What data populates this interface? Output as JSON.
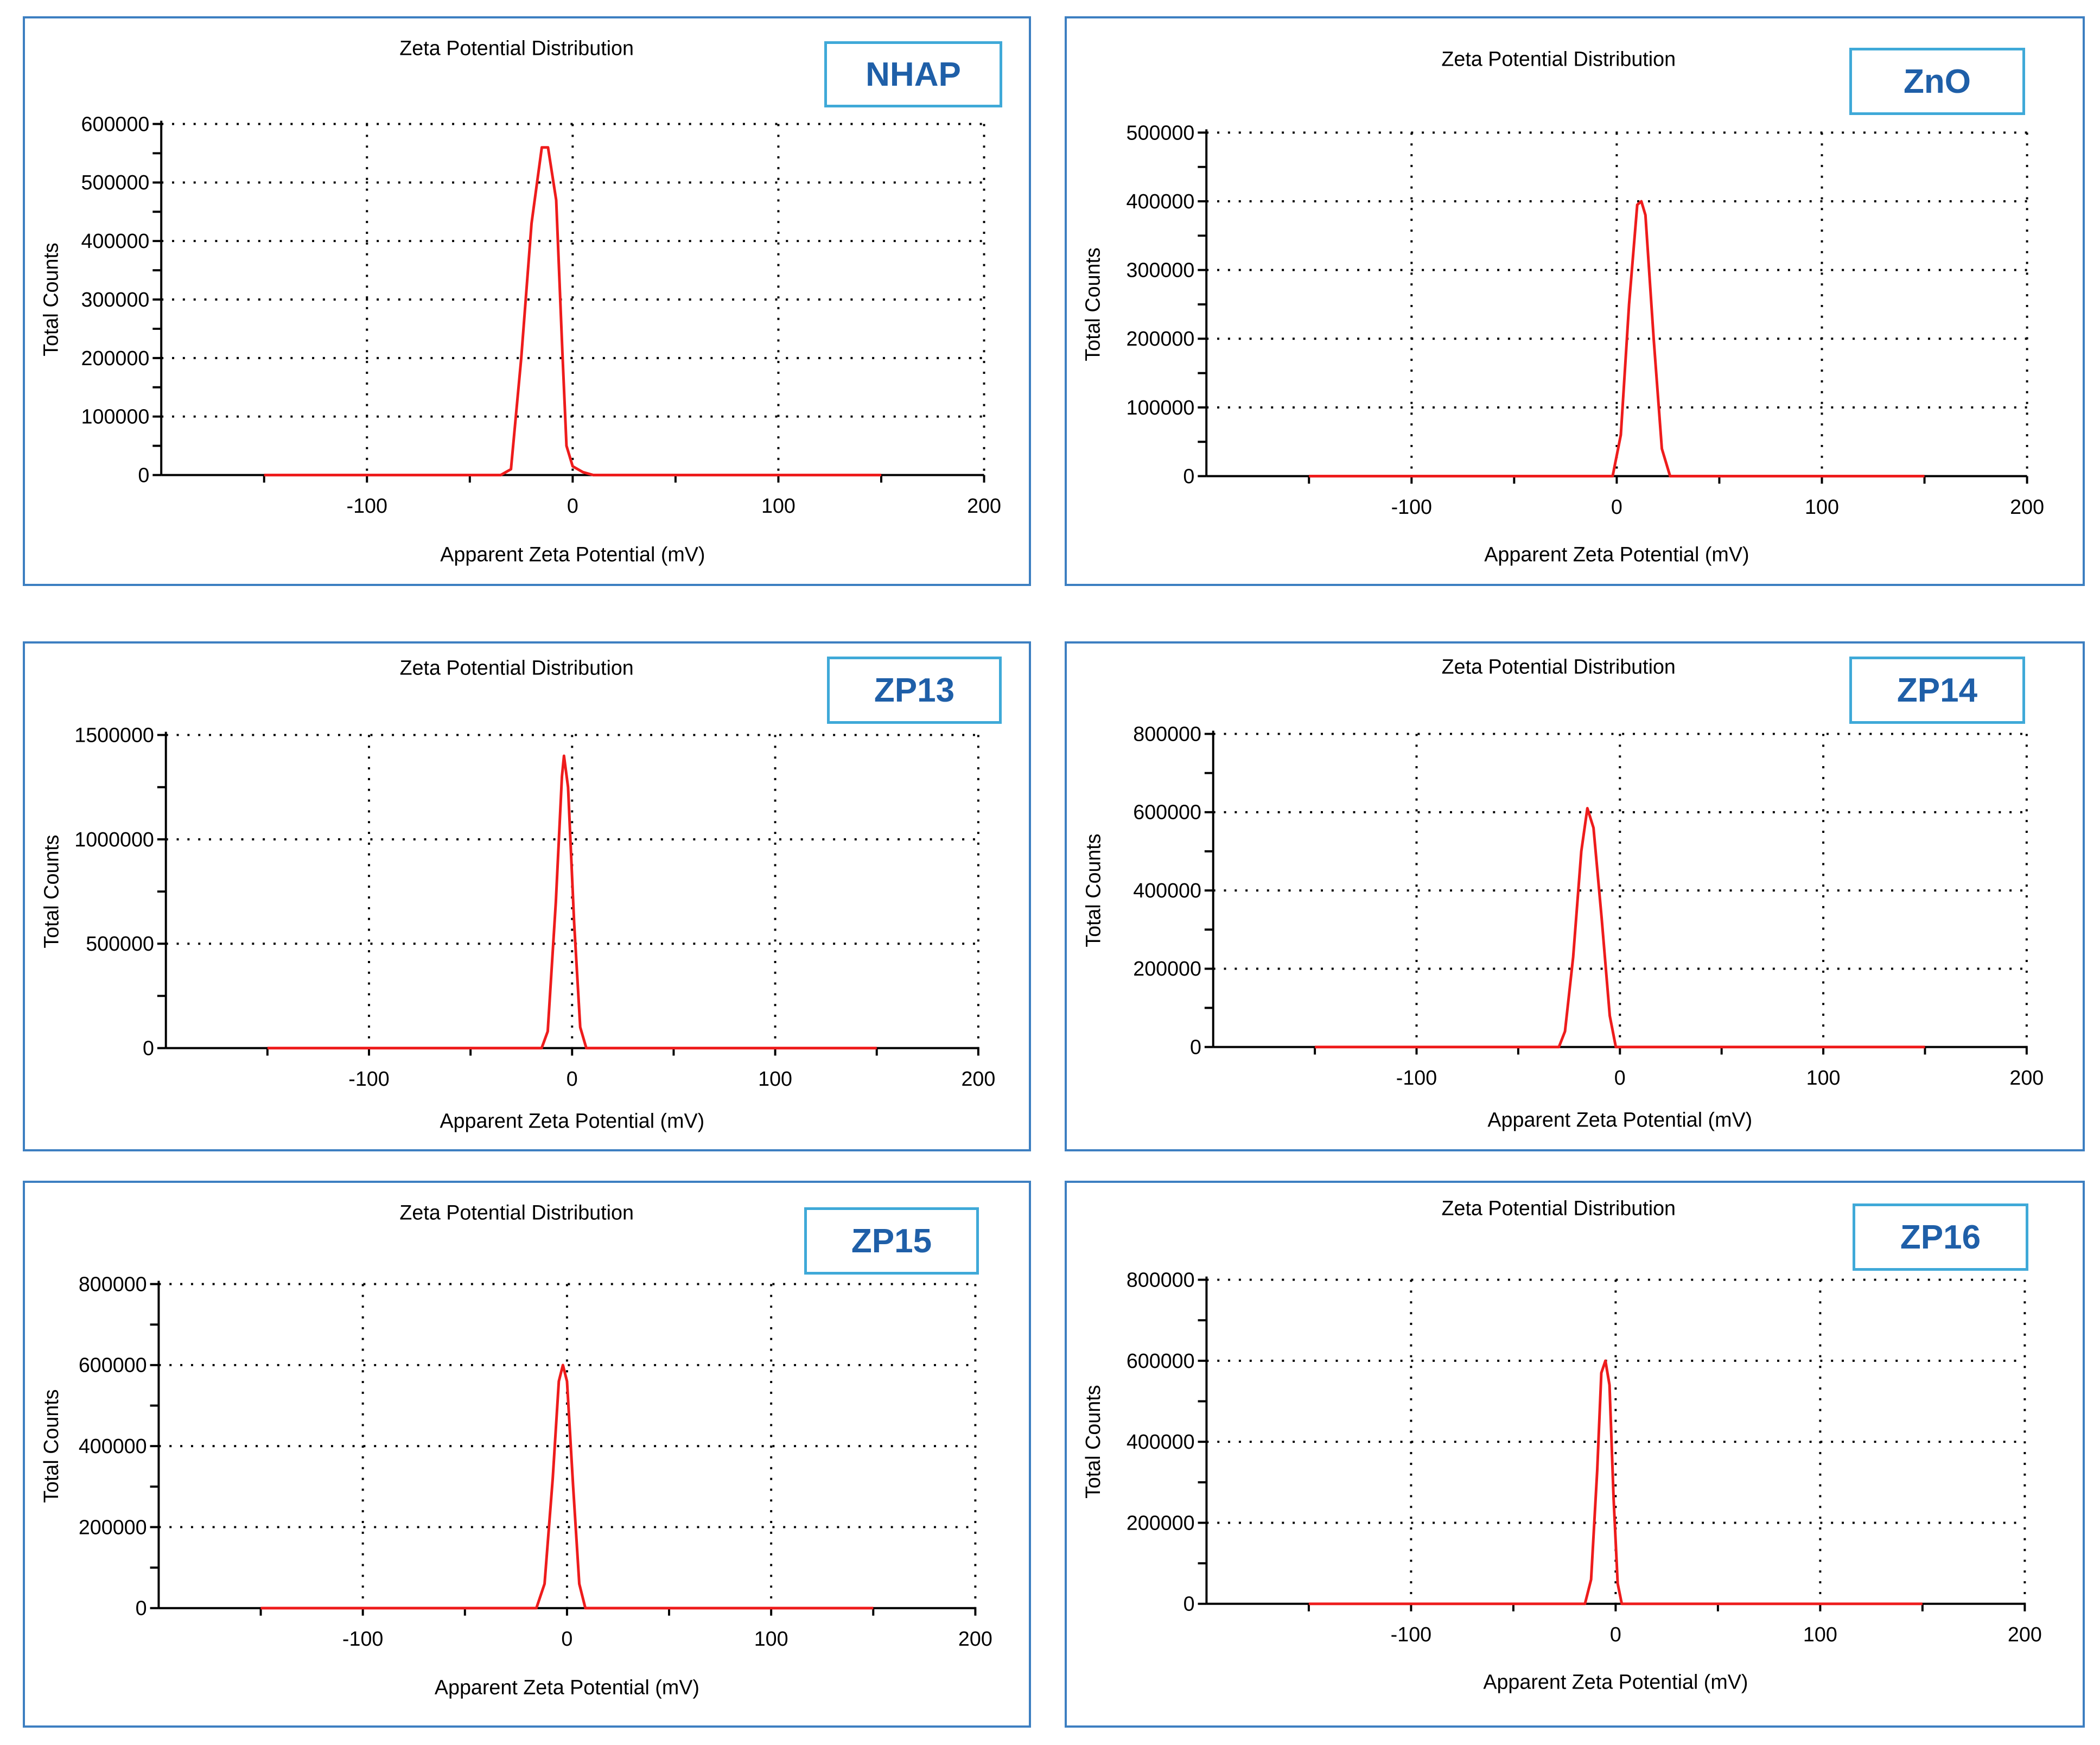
{
  "colors": {
    "curve": "#ee1c1c",
    "frame": "#3d7fc1",
    "tag_border": "#3fa9d8",
    "tag_text": "#1f5fa8"
  },
  "chart_data": [
    {
      "type": "line",
      "label": "NHAP",
      "title": "Zeta Potential Distribution",
      "xlabel": "Apparent Zeta Potential (mV)",
      "ylabel": "Total Counts",
      "xlim": [
        -200,
        200
      ],
      "ylim": [
        0,
        600000
      ],
      "xticks": [
        "-100",
        "0",
        "100",
        "200"
      ],
      "yticks": [
        "0",
        "100000",
        "200000",
        "300000",
        "400000",
        "500000",
        "600000"
      ],
      "series": [
        {
          "name": "NHAP",
          "x": [
            -150,
            -35,
            -30,
            -25,
            -20,
            -15,
            -12,
            -8,
            -5,
            -3,
            0,
            5,
            10,
            150
          ],
          "values": [
            0,
            0,
            10000,
            200000,
            430000,
            560000,
            560000,
            470000,
            210000,
            50000,
            15000,
            5000,
            0,
            0
          ]
        }
      ]
    },
    {
      "type": "line",
      "label": "ZnO",
      "title": "Zeta Potential Distribution",
      "xlabel": "Apparent Zeta Potential (mV)",
      "ylabel": "Total Counts",
      "xlim": [
        -200,
        200
      ],
      "ylim": [
        0,
        500000
      ],
      "xticks": [
        "-100",
        "0",
        "100",
        "200"
      ],
      "yticks": [
        "0",
        "100000",
        "200000",
        "300000",
        "400000",
        "500000"
      ],
      "series": [
        {
          "name": "ZnO",
          "x": [
            -150,
            -2,
            2,
            6,
            10,
            12,
            14,
            18,
            22,
            26,
            150
          ],
          "values": [
            0,
            0,
            60000,
            250000,
            395000,
            400000,
            380000,
            200000,
            40000,
            0,
            0
          ]
        }
      ]
    },
    {
      "type": "line",
      "label": "ZP13",
      "title": "Zeta Potential Distribution",
      "xlabel": "Apparent Zeta Potential (mV)",
      "ylabel": "Total Counts",
      "xlim": [
        -200,
        200
      ],
      "ylim": [
        0,
        1500000
      ],
      "xticks": [
        "-100",
        "0",
        "100",
        "200"
      ],
      "yticks": [
        "0",
        "500000",
        "1000000",
        "1500000"
      ],
      "series": [
        {
          "name": "ZP13",
          "x": [
            -150,
            -15,
            -12,
            -8,
            -5,
            -4,
            -2,
            1,
            4,
            7,
            150
          ],
          "values": [
            0,
            0,
            80000,
            700000,
            1300000,
            1400000,
            1250000,
            600000,
            100000,
            0,
            0
          ]
        }
      ]
    },
    {
      "type": "line",
      "label": "ZP14",
      "title": "Zeta Potential Distribution",
      "xlabel": "Apparent Zeta Potential (mV)",
      "ylabel": "Total Counts",
      "xlim": [
        -200,
        200
      ],
      "ylim": [
        0,
        800000
      ],
      "xticks": [
        "-100",
        "0",
        "100",
        "200"
      ],
      "yticks": [
        "0",
        "200000",
        "400000",
        "600000",
        "800000"
      ],
      "series": [
        {
          "name": "ZP14",
          "x": [
            -150,
            -30,
            -27,
            -23,
            -19,
            -16,
            -13,
            -9,
            -5,
            -2,
            150
          ],
          "values": [
            0,
            0,
            40000,
            230000,
            500000,
            610000,
            560000,
            330000,
            80000,
            0,
            0
          ]
        }
      ]
    },
    {
      "type": "line",
      "label": "ZP15",
      "title": "Zeta Potential Distribution",
      "xlabel": "Apparent Zeta Potential (mV)",
      "ylabel": "Total Counts",
      "xlim": [
        -200,
        200
      ],
      "ylim": [
        0,
        800000
      ],
      "xticks": [
        "-100",
        "0",
        "100",
        "200"
      ],
      "yticks": [
        "0",
        "200000",
        "400000",
        "600000",
        "800000"
      ],
      "series": [
        {
          "name": "ZP15",
          "x": [
            -150,
            -15,
            -11,
            -7,
            -4,
            -2,
            0,
            3,
            6,
            9,
            150
          ],
          "values": [
            0,
            0,
            60000,
            320000,
            560000,
            600000,
            560000,
            300000,
            60000,
            0,
            0
          ]
        }
      ]
    },
    {
      "type": "line",
      "label": "ZP16",
      "title": "Zeta Potential Distribution",
      "xlabel": "Apparent Zeta Potential (mV)",
      "ylabel": "Total Counts",
      "xlim": [
        -200,
        200
      ],
      "ylim": [
        0,
        800000
      ],
      "xticks": [
        "-100",
        "0",
        "100",
        "200"
      ],
      "yticks": [
        "0",
        "200000",
        "400000",
        "600000",
        "800000"
      ],
      "series": [
        {
          "name": "ZP16",
          "x": [
            -150,
            -15,
            -12,
            -9,
            -7,
            -5,
            -3,
            -1,
            1,
            3,
            150
          ],
          "values": [
            0,
            0,
            60000,
            330000,
            570000,
            600000,
            540000,
            260000,
            50000,
            0,
            0
          ]
        }
      ]
    }
  ]
}
